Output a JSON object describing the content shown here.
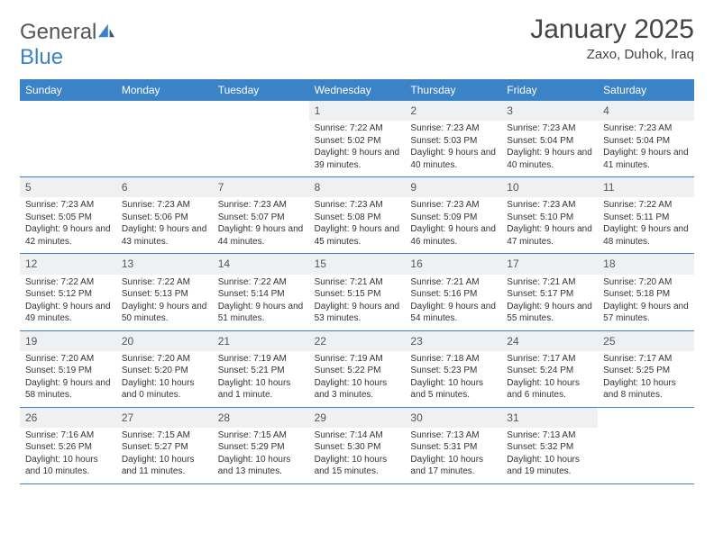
{
  "logo": {
    "part1": "General",
    "part2": "Blue"
  },
  "title": "January 2025",
  "location": "Zaxo, Duhok, Iraq",
  "colors": {
    "header_bg": "#3b82c7",
    "header_text": "#ffffff",
    "daynum_bg": "#eef0f2",
    "border": "#3b82c7",
    "body_text": "#333333",
    "title_text": "#444444"
  },
  "day_names": [
    "Sunday",
    "Monday",
    "Tuesday",
    "Wednesday",
    "Thursday",
    "Friday",
    "Saturday"
  ],
  "weeks": [
    [
      null,
      null,
      null,
      {
        "n": "1",
        "sr": "7:22 AM",
        "ss": "5:02 PM",
        "dl": "9 hours and 39 minutes."
      },
      {
        "n": "2",
        "sr": "7:23 AM",
        "ss": "5:03 PM",
        "dl": "9 hours and 40 minutes."
      },
      {
        "n": "3",
        "sr": "7:23 AM",
        "ss": "5:04 PM",
        "dl": "9 hours and 40 minutes."
      },
      {
        "n": "4",
        "sr": "7:23 AM",
        "ss": "5:04 PM",
        "dl": "9 hours and 41 minutes."
      }
    ],
    [
      {
        "n": "5",
        "sr": "7:23 AM",
        "ss": "5:05 PM",
        "dl": "9 hours and 42 minutes."
      },
      {
        "n": "6",
        "sr": "7:23 AM",
        "ss": "5:06 PM",
        "dl": "9 hours and 43 minutes."
      },
      {
        "n": "7",
        "sr": "7:23 AM",
        "ss": "5:07 PM",
        "dl": "9 hours and 44 minutes."
      },
      {
        "n": "8",
        "sr": "7:23 AM",
        "ss": "5:08 PM",
        "dl": "9 hours and 45 minutes."
      },
      {
        "n": "9",
        "sr": "7:23 AM",
        "ss": "5:09 PM",
        "dl": "9 hours and 46 minutes."
      },
      {
        "n": "10",
        "sr": "7:23 AM",
        "ss": "5:10 PM",
        "dl": "9 hours and 47 minutes."
      },
      {
        "n": "11",
        "sr": "7:22 AM",
        "ss": "5:11 PM",
        "dl": "9 hours and 48 minutes."
      }
    ],
    [
      {
        "n": "12",
        "sr": "7:22 AM",
        "ss": "5:12 PM",
        "dl": "9 hours and 49 minutes."
      },
      {
        "n": "13",
        "sr": "7:22 AM",
        "ss": "5:13 PM",
        "dl": "9 hours and 50 minutes."
      },
      {
        "n": "14",
        "sr": "7:22 AM",
        "ss": "5:14 PM",
        "dl": "9 hours and 51 minutes."
      },
      {
        "n": "15",
        "sr": "7:21 AM",
        "ss": "5:15 PM",
        "dl": "9 hours and 53 minutes."
      },
      {
        "n": "16",
        "sr": "7:21 AM",
        "ss": "5:16 PM",
        "dl": "9 hours and 54 minutes."
      },
      {
        "n": "17",
        "sr": "7:21 AM",
        "ss": "5:17 PM",
        "dl": "9 hours and 55 minutes."
      },
      {
        "n": "18",
        "sr": "7:20 AM",
        "ss": "5:18 PM",
        "dl": "9 hours and 57 minutes."
      }
    ],
    [
      {
        "n": "19",
        "sr": "7:20 AM",
        "ss": "5:19 PM",
        "dl": "9 hours and 58 minutes."
      },
      {
        "n": "20",
        "sr": "7:20 AM",
        "ss": "5:20 PM",
        "dl": "10 hours and 0 minutes."
      },
      {
        "n": "21",
        "sr": "7:19 AM",
        "ss": "5:21 PM",
        "dl": "10 hours and 1 minute."
      },
      {
        "n": "22",
        "sr": "7:19 AM",
        "ss": "5:22 PM",
        "dl": "10 hours and 3 minutes."
      },
      {
        "n": "23",
        "sr": "7:18 AM",
        "ss": "5:23 PM",
        "dl": "10 hours and 5 minutes."
      },
      {
        "n": "24",
        "sr": "7:17 AM",
        "ss": "5:24 PM",
        "dl": "10 hours and 6 minutes."
      },
      {
        "n": "25",
        "sr": "7:17 AM",
        "ss": "5:25 PM",
        "dl": "10 hours and 8 minutes."
      }
    ],
    [
      {
        "n": "26",
        "sr": "7:16 AM",
        "ss": "5:26 PM",
        "dl": "10 hours and 10 minutes."
      },
      {
        "n": "27",
        "sr": "7:15 AM",
        "ss": "5:27 PM",
        "dl": "10 hours and 11 minutes."
      },
      {
        "n": "28",
        "sr": "7:15 AM",
        "ss": "5:29 PM",
        "dl": "10 hours and 13 minutes."
      },
      {
        "n": "29",
        "sr": "7:14 AM",
        "ss": "5:30 PM",
        "dl": "10 hours and 15 minutes."
      },
      {
        "n": "30",
        "sr": "7:13 AM",
        "ss": "5:31 PM",
        "dl": "10 hours and 17 minutes."
      },
      {
        "n": "31",
        "sr": "7:13 AM",
        "ss": "5:32 PM",
        "dl": "10 hours and 19 minutes."
      },
      null
    ]
  ],
  "labels": {
    "sunrise": "Sunrise:",
    "sunset": "Sunset:",
    "daylight": "Daylight:"
  }
}
